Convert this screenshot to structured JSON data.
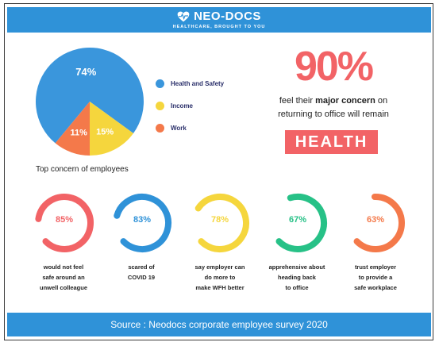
{
  "header": {
    "brand": "NEO-DOCS",
    "tagline": "HEALTHCARE, BROUGHT TO YOU",
    "logo_icon": "heart-pulse-icon"
  },
  "colors": {
    "primary_blue": "#2f92d8",
    "red": "#f26366",
    "yellow": "#f5d63d",
    "orange": "#f4794a",
    "green": "#27c187",
    "pie_blue": "#3a96dc"
  },
  "chart_data": [
    {
      "type": "pie",
      "title": "",
      "categories": [
        "Health and Safety",
        "Income",
        "Work"
      ],
      "values": [
        74,
        15,
        11
      ],
      "value_labels": [
        "74%",
        "15%",
        "11%"
      ],
      "colors": [
        "#3a96dc",
        "#f5d63d",
        "#f4794a"
      ],
      "caption": "Top concern of employees",
      "legend": "right"
    },
    {
      "type": "donut",
      "values": [
        85,
        83,
        78,
        67,
        63
      ],
      "value_labels": [
        "85%",
        "83%",
        "78%",
        "67%",
        "63%"
      ],
      "colors": [
        "#f26366",
        "#2f92d8",
        "#f5d63d",
        "#27c187",
        "#f4794a"
      ],
      "labels": [
        [
          "would not feel",
          "safe around an",
          "unwell colleague"
        ],
        [
          "scared of",
          "COVID 19"
        ],
        [
          "say employer can",
          "do more to",
          "make WFH better"
        ],
        [
          "apprehensive about",
          "heading back",
          "to office"
        ],
        [
          "trust employer",
          "to provide a",
          "safe workplace"
        ]
      ]
    }
  ],
  "headline": {
    "percent": "90%",
    "line1_pre": "feel their ",
    "line1_bold": "major concern",
    "line1_post": " on",
    "line2": "returning to office will remain",
    "highlight": "HEALTH"
  },
  "footer": {
    "source": "Source :  Neodocs corporate employee survey 2020"
  }
}
